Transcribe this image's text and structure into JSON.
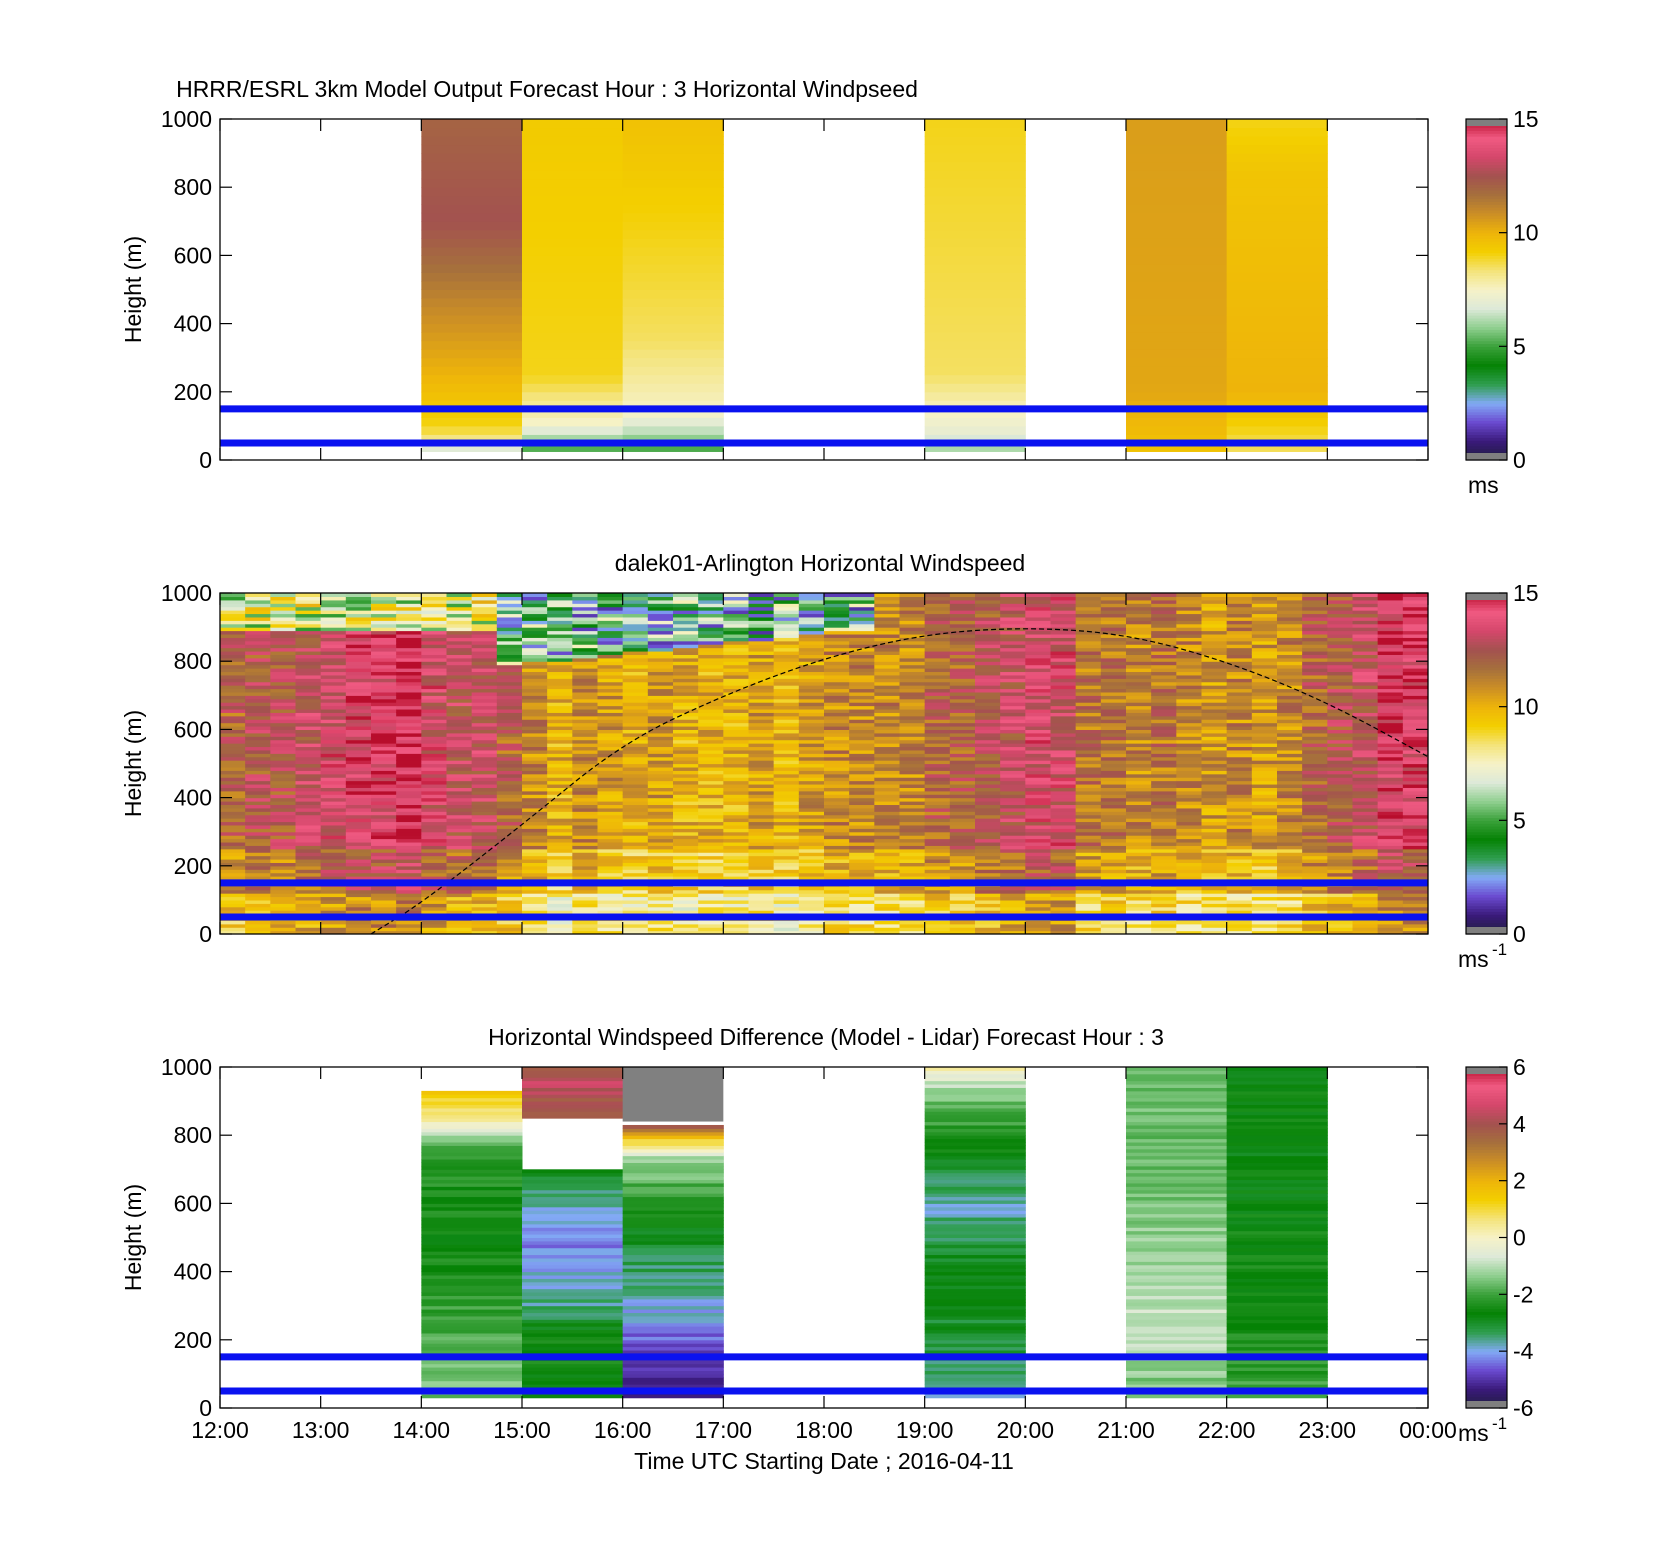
{
  "figure": {
    "xlabel": "Time UTC  Starting Date ; 2016-04-11",
    "x_ticks": [
      "12:00",
      "13:00",
      "14:00",
      "15:00",
      "16:00",
      "17:00",
      "18:00",
      "19:00",
      "20:00",
      "21:00",
      "22:00",
      "23:00",
      "00:00"
    ]
  },
  "colors": {
    "cmap": [
      "#1e1e3c",
      "#3a1a7a",
      "#6a4ad0",
      "#82aaf5",
      "#2f9e4f",
      "#058205",
      "#3aa13a",
      "#8fcf8f",
      "#dde9d8",
      "#f6f2c8",
      "#f4e47a",
      "#f3cf00",
      "#eeb40a",
      "#cc8f25",
      "#a6703c",
      "#a3524f",
      "#d4476b",
      "#f05a82",
      "#b80d2c"
    ],
    "blue_line": "#0a12f0"
  },
  "chart_data": [
    {
      "type": "heatmap",
      "title": "HRRR/ESRL 3km Model Output   Forecast Hour : 3 Horizontal Windpseed",
      "xlabel": "",
      "ylabel": "Height (m)",
      "ylim": [
        0,
        1000
      ],
      "y_ticks": [
        "0",
        "200",
        "400",
        "600",
        "800",
        "1000"
      ],
      "clim": [
        0,
        15
      ],
      "cbar_ticks": [
        "0",
        "5",
        "10",
        "15"
      ],
      "cbar_label": "ms",
      "cbar_sup": "",
      "reference_lines_m": [
        150,
        50
      ],
      "columns": [
        {
          "time": "14:00-15:00",
          "profile": [
            [
              30,
              6
            ],
            [
              50,
              8
            ],
            [
              100,
              9
            ],
            [
              250,
              10
            ],
            [
              450,
              11
            ],
            [
              700,
              12.5
            ],
            [
              1000,
              12
            ]
          ]
        },
        {
          "time": "15:00-16:00",
          "profile": [
            [
              30,
              5
            ],
            [
              60,
              6
            ],
            [
              110,
              7.5
            ],
            [
              250,
              9
            ],
            [
              1000,
              9.3
            ]
          ]
        },
        {
          "time": "16:00-17:00",
          "profile": [
            [
              30,
              5
            ],
            [
              70,
              6
            ],
            [
              140,
              7.5
            ],
            [
              350,
              8.5
            ],
            [
              1000,
              9.6
            ]
          ]
        },
        {
          "time": "19:00-20:00",
          "profile": [
            [
              30,
              6
            ],
            [
              80,
              7
            ],
            [
              250,
              8.5
            ],
            [
              1000,
              9
            ]
          ]
        },
        {
          "time": "21:00-22:00",
          "profile": [
            [
              30,
              9.5
            ],
            [
              200,
              10.3
            ],
            [
              1000,
              10.5
            ]
          ]
        },
        {
          "time": "22:00-23:00",
          "profile": [
            [
              30,
              8.5
            ],
            [
              200,
              10
            ],
            [
              850,
              9.5
            ],
            [
              1000,
              9
            ]
          ]
        }
      ]
    },
    {
      "type": "heatmap",
      "title": "dalek01-Arlington  Horizontal Windspeed",
      "xlabel": "",
      "ylabel": "Height (m)",
      "ylim": [
        0,
        1000
      ],
      "y_ticks": [
        "0",
        "200",
        "400",
        "600",
        "800",
        "1000"
      ],
      "clim": [
        0,
        15
      ],
      "cbar_ticks": [
        "0",
        "5",
        "10",
        "15"
      ],
      "cbar_label": "ms",
      "cbar_sup": "-1",
      "reference_lines_m": [
        150,
        50
      ],
      "time_start_hours": [
        12,
        12.25,
        12.5,
        12.75,
        13,
        13.25,
        13.5,
        13.75,
        14,
        14.25,
        14.5,
        14.75,
        15,
        15.25,
        15.5,
        15.75,
        16,
        16.25,
        16.5,
        16.75,
        17,
        17.25,
        17.5,
        17.75,
        18,
        18.25,
        18.5,
        18.75,
        19,
        19.25,
        19.5,
        19.75,
        20,
        20.25,
        20.5,
        20.75,
        21,
        21.25,
        21.5,
        21.75,
        22,
        22.25,
        22.5,
        22.75,
        23,
        23.25,
        23.5,
        23.75
      ],
      "lidar_mean_speed": [
        12,
        12.5,
        12.5,
        13,
        13.5,
        14,
        14,
        14.5,
        13.5,
        13,
        13,
        12,
        11,
        10,
        11,
        10.5,
        10,
        10.5,
        10,
        10,
        10,
        10.5,
        10,
        10.5,
        11,
        11,
        11,
        11,
        12,
        12,
        12.5,
        13,
        13.5,
        13.5,
        11.5,
        11.5,
        11,
        11.5,
        11,
        10.5,
        11,
        10.5,
        11,
        12,
        12.5,
        13,
        14,
        14
      ],
      "mixing_layer_top_m": [
        [
          13.5,
          0
        ],
        [
          14,
          90
        ],
        [
          15,
          320
        ],
        [
          16,
          560
        ],
        [
          17,
          700
        ],
        [
          18,
          810
        ],
        [
          19,
          880
        ],
        [
          20,
          900
        ],
        [
          21,
          880
        ],
        [
          22,
          800
        ],
        [
          23,
          680
        ],
        [
          24,
          520
        ]
      ]
    },
    {
      "type": "heatmap",
      "title": "Horizontal Windspeed Difference (Model - Lidar) Forecast Hour : 3",
      "xlabel": "Time UTC  Starting Date ; 2016-04-11",
      "ylabel": "Height (m)",
      "ylim": [
        0,
        1000
      ],
      "y_ticks": [
        "0",
        "200",
        "400",
        "600",
        "800",
        "1000"
      ],
      "clim": [
        -6,
        6
      ],
      "cbar_ticks": [
        "-6",
        "-4",
        "-2",
        "0",
        "2",
        "4",
        "6"
      ],
      "cbar_label": "ms",
      "cbar_sup": "-1",
      "reference_lines_m": [
        150,
        50
      ],
      "columns": [
        {
          "time": "14:00-15:00",
          "profile": [
            [
              30,
              -1.5
            ],
            [
              200,
              -1.8
            ],
            [
              500,
              -2.6
            ],
            [
              750,
              -2.2
            ],
            [
              820,
              -0.5
            ],
            [
              860,
              0.5
            ],
            [
              930,
              1.5
            ]
          ]
        },
        {
          "time": "15:00-16:00",
          "profile": [
            [
              30,
              -2.6
            ],
            [
              220,
              -2.6
            ],
            [
              300,
              -3.5
            ],
            [
              450,
              -4.3
            ],
            [
              600,
              -3.8
            ],
            [
              700,
              -2.8
            ],
            [
              710,
              null
            ],
            [
              840,
              null
            ],
            [
              850,
              3.5
            ],
            [
              960,
              4.5
            ],
            [
              1000,
              3.5
            ]
          ]
        },
        {
          "time": "16:00-17:00",
          "profile": [
            [
              30,
              -5.5
            ],
            [
              200,
              -4.5
            ],
            [
              300,
              -3.8
            ],
            [
              450,
              -3.2
            ],
            [
              600,
              -2.4
            ],
            [
              740,
              -1
            ],
            [
              790,
              1.5
            ],
            [
              830,
              4.5
            ],
            [
              840,
              null
            ],
            [
              1000,
              null
            ]
          ]
        },
        {
          "time": "19:00-20:00",
          "profile": [
            [
              30,
              -3.8
            ],
            [
              150,
              -3.2
            ],
            [
              400,
              -2.8
            ],
            [
              600,
              -3.8
            ],
            [
              750,
              -2.7
            ],
            [
              900,
              -1.5
            ],
            [
              980,
              -0.5
            ],
            [
              1000,
              0.5
            ]
          ]
        },
        {
          "time": "21:00-22:00",
          "profile": [
            [
              30,
              -1.6
            ],
            [
              250,
              -0.8
            ],
            [
              450,
              -1.3
            ],
            [
              700,
              -1.6
            ],
            [
              1000,
              -1.5
            ]
          ]
        },
        {
          "time": "22:00-23:00",
          "profile": [
            [
              30,
              -2
            ],
            [
              300,
              -2.5
            ],
            [
              700,
              -2.7
            ],
            [
              1000,
              -2.6
            ]
          ]
        }
      ]
    }
  ]
}
